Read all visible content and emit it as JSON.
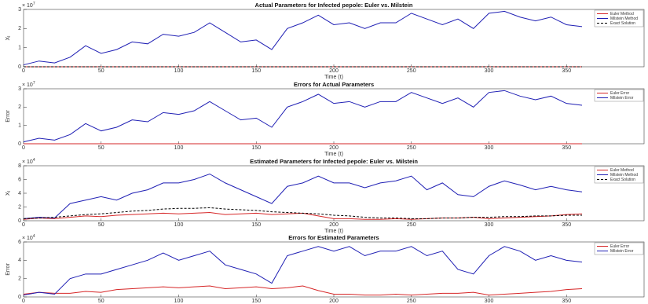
{
  "chart_data": [
    {
      "type": "line",
      "title": "Actual Parameters for Infected pepole: Euler vs. Milstein",
      "xlabel": "Time (t)",
      "ylabel": "X",
      "ylabel_subscript": "I",
      "y_multiplier": "× 10",
      "y_exponent": "7",
      "x": [
        0,
        10,
        20,
        30,
        40,
        50,
        60,
        70,
        80,
        90,
        100,
        110,
        120,
        130,
        140,
        150,
        160,
        170,
        180,
        190,
        200,
        210,
        220,
        230,
        240,
        250,
        260,
        270,
        280,
        290,
        300,
        310,
        320,
        330,
        340,
        350,
        360
      ],
      "xlim": [
        0,
        400
      ],
      "xticks": [
        0,
        50,
        100,
        150,
        200,
        250,
        300,
        350
      ],
      "ylim": [
        0,
        3
      ],
      "yticks": [
        0,
        1,
        2,
        3
      ],
      "legend": "upper right",
      "series": [
        {
          "name": "Euler Method",
          "color": "#d62728",
          "line_style": "solid",
          "values": [
            0,
            0,
            0,
            0,
            0,
            0,
            0,
            0,
            0,
            0,
            0,
            0,
            0,
            0,
            0,
            0,
            0,
            0,
            0,
            0,
            0,
            0,
            0,
            0,
            0,
            0,
            0,
            0,
            0,
            0,
            0,
            0,
            0,
            0,
            0,
            0,
            0
          ]
        },
        {
          "name": "Milstein Method",
          "color": "#1f1fb4",
          "line_style": "solid",
          "values": [
            0.1,
            0.3,
            0.2,
            0.5,
            1.1,
            0.7,
            0.9,
            1.3,
            1.2,
            1.7,
            1.6,
            1.8,
            2.3,
            1.8,
            1.3,
            1.4,
            0.9,
            2.0,
            2.3,
            2.7,
            2.2,
            2.3,
            2.0,
            2.3,
            2.3,
            2.8,
            2.5,
            2.2,
            2.5,
            2.0,
            2.8,
            2.9,
            2.6,
            2.4,
            2.6,
            2.2,
            2.1
          ]
        },
        {
          "name": "Exact Solution",
          "color": "#000000",
          "line_style": "dashed",
          "values": [
            0,
            0,
            0,
            0,
            0,
            0,
            0,
            0,
            0,
            0,
            0,
            0,
            0,
            0,
            0,
            0,
            0,
            0,
            0,
            0,
            0,
            0,
            0,
            0,
            0,
            0,
            0,
            0,
            0,
            0,
            0,
            0,
            0,
            0,
            0,
            0,
            0
          ]
        }
      ]
    },
    {
      "type": "line",
      "title": "Errors for Actual Parameters",
      "xlabel": "Time (t)",
      "ylabel": "Error",
      "y_multiplier": "× 10",
      "y_exponent": "7",
      "x": [
        0,
        10,
        20,
        30,
        40,
        50,
        60,
        70,
        80,
        90,
        100,
        110,
        120,
        130,
        140,
        150,
        160,
        170,
        180,
        190,
        200,
        210,
        220,
        230,
        240,
        250,
        260,
        270,
        280,
        290,
        300,
        310,
        320,
        330,
        340,
        350,
        360
      ],
      "xlim": [
        0,
        400
      ],
      "xticks": [
        0,
        50,
        100,
        150,
        200,
        250,
        300,
        350
      ],
      "ylim": [
        0,
        3
      ],
      "yticks": [
        0,
        1,
        2,
        3
      ],
      "legend": "upper right",
      "series": [
        {
          "name": "Euler Error",
          "color": "#d62728",
          "line_style": "solid",
          "values": [
            0,
            0,
            0,
            0,
            0,
            0,
            0,
            0,
            0,
            0,
            0,
            0,
            0,
            0,
            0,
            0,
            0,
            0,
            0,
            0,
            0,
            0,
            0,
            0,
            0,
            0,
            0,
            0,
            0,
            0,
            0,
            0,
            0,
            0,
            0,
            0,
            0
          ]
        },
        {
          "name": "Milstein Error",
          "color": "#1f1fb4",
          "line_style": "solid",
          "values": [
            0.1,
            0.3,
            0.2,
            0.5,
            1.1,
            0.7,
            0.9,
            1.3,
            1.2,
            1.7,
            1.6,
            1.8,
            2.3,
            1.8,
            1.3,
            1.4,
            0.9,
            2.0,
            2.3,
            2.7,
            2.2,
            2.3,
            2.0,
            2.3,
            2.3,
            2.8,
            2.5,
            2.2,
            2.5,
            2.0,
            2.8,
            2.9,
            2.6,
            2.4,
            2.6,
            2.2,
            2.1
          ]
        }
      ]
    },
    {
      "type": "line",
      "title": "Estimated Parameters for Infected pepole: Euler vs. Milstein",
      "xlabel": "Time (t)",
      "ylabel": "X",
      "ylabel_subscript": "I",
      "y_multiplier": "× 10",
      "y_exponent": "4",
      "x": [
        0,
        10,
        20,
        30,
        40,
        50,
        60,
        70,
        80,
        90,
        100,
        110,
        120,
        130,
        140,
        150,
        160,
        170,
        180,
        190,
        200,
        210,
        220,
        230,
        240,
        250,
        260,
        270,
        280,
        290,
        300,
        310,
        320,
        330,
        340,
        350,
        360
      ],
      "xlim": [
        0,
        400
      ],
      "xticks": [
        0,
        50,
        100,
        150,
        200,
        250,
        300,
        350
      ],
      "ylim": [
        0,
        8
      ],
      "yticks": [
        0,
        2,
        4,
        6,
        8
      ],
      "legend": "upper right",
      "series": [
        {
          "name": "Euler Method",
          "color": "#d62728",
          "line_style": "solid",
          "values": [
            0.2,
            0.4,
            0.3,
            0.5,
            0.7,
            0.6,
            0.8,
            0.9,
            1.0,
            1.1,
            1.0,
            1.1,
            1.2,
            0.9,
            1.0,
            1.1,
            0.9,
            1.0,
            1.1,
            0.7,
            0.3,
            0.3,
            0.2,
            0.2,
            0.3,
            0.2,
            0.3,
            0.4,
            0.4,
            0.5,
            0.3,
            0.4,
            0.5,
            0.6,
            0.7,
            0.9,
            1.0
          ]
        },
        {
          "name": "Milstein Method",
          "color": "#1f1fb4",
          "line_style": "solid",
          "values": [
            0.3,
            0.5,
            0.4,
            2.5,
            3.0,
            3.5,
            3.0,
            4.0,
            4.5,
            5.5,
            5.5,
            6.0,
            6.8,
            5.5,
            4.5,
            3.5,
            2.5,
            5.0,
            5.5,
            6.5,
            5.5,
            5.5,
            4.8,
            5.5,
            5.8,
            6.5,
            4.5,
            5.5,
            3.8,
            3.5,
            5.0,
            5.8,
            5.2,
            4.5,
            5.0,
            4.5,
            4.2
          ]
        },
        {
          "name": "Exact Solution",
          "color": "#000000",
          "line_style": "dashed",
          "values": [
            0.3,
            0.4,
            0.5,
            0.7,
            0.9,
            1.0,
            1.2,
            1.4,
            1.5,
            1.7,
            1.8,
            1.8,
            1.9,
            1.7,
            1.6,
            1.5,
            1.3,
            1.2,
            1.1,
            1.0,
            0.8,
            0.7,
            0.5,
            0.4,
            0.4,
            0.3,
            0.3,
            0.4,
            0.4,
            0.5,
            0.5,
            0.6,
            0.6,
            0.7,
            0.7,
            0.8,
            0.8
          ]
        }
      ]
    },
    {
      "type": "line",
      "title": "Errors for Estimated Parameters",
      "xlabel": "Time (t)",
      "ylabel": "Error",
      "y_multiplier": "× 10",
      "y_exponent": "4",
      "x": [
        0,
        10,
        20,
        30,
        40,
        50,
        60,
        70,
        80,
        90,
        100,
        110,
        120,
        130,
        140,
        150,
        160,
        170,
        180,
        190,
        200,
        210,
        220,
        230,
        240,
        250,
        260,
        270,
        280,
        290,
        300,
        310,
        320,
        330,
        340,
        350,
        360
      ],
      "xlim": [
        0,
        400
      ],
      "xticks": [
        0,
        50,
        100,
        150,
        200,
        250,
        300,
        350
      ],
      "ylim": [
        0,
        6
      ],
      "yticks": [
        0,
        2,
        4,
        6
      ],
      "legend": "upper right",
      "series": [
        {
          "name": "Euler Error",
          "color": "#d62728",
          "line_style": "solid",
          "values": [
            0.3,
            0.5,
            0.4,
            0.4,
            0.6,
            0.5,
            0.8,
            0.9,
            1.0,
            1.1,
            1.0,
            1.1,
            1.2,
            0.9,
            1.0,
            1.1,
            0.9,
            1.0,
            1.2,
            0.7,
            0.3,
            0.3,
            0.2,
            0.2,
            0.3,
            0.2,
            0.3,
            0.4,
            0.4,
            0.5,
            0.2,
            0.3,
            0.4,
            0.5,
            0.6,
            0.8,
            0.9
          ]
        },
        {
          "name": "Milstein Error",
          "color": "#1f1fb4",
          "line_style": "solid",
          "values": [
            0.2,
            0.5,
            0.3,
            2.0,
            2.5,
            2.5,
            3.0,
            3.5,
            4.0,
            4.8,
            4.0,
            4.5,
            5.0,
            3.5,
            3.0,
            2.5,
            1.5,
            4.5,
            5.0,
            5.5,
            5.0,
            5.5,
            4.5,
            5.0,
            5.0,
            5.5,
            4.5,
            5.0,
            3.0,
            2.5,
            4.5,
            5.5,
            5.0,
            4.0,
            4.5,
            4.0,
            3.8
          ]
        }
      ]
    }
  ]
}
